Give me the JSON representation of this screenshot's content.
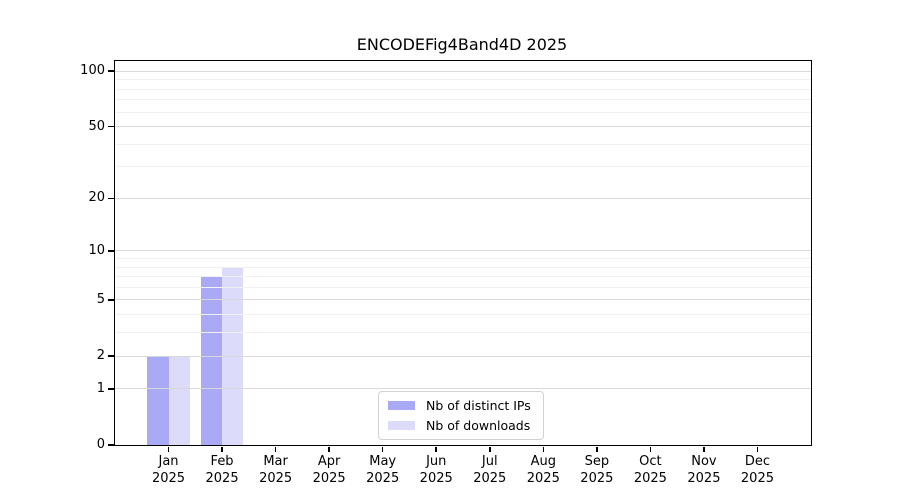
{
  "figure": {
    "title": "ENCODEFig4Band4D 2025"
  },
  "chart_data": {
    "type": "bar",
    "title": "ENCODEFig4Band4D 2025",
    "categories": [
      "Jan 2025",
      "Feb 2025",
      "Mar 2025",
      "Apr 2025",
      "May 2025",
      "Jun 2025",
      "Jul 2025",
      "Aug 2025",
      "Sep 2025",
      "Oct 2025",
      "Nov 2025",
      "Dec 2025"
    ],
    "series": [
      {
        "name": "Nb of distinct IPs",
        "color": "#a9a9f6",
        "values": [
          2,
          7,
          0,
          0,
          0,
          0,
          0,
          0,
          0,
          0,
          0,
          0
        ]
      },
      {
        "name": "Nb of downloads",
        "color": "#dcdcfa",
        "values": [
          2,
          8,
          0,
          0,
          0,
          0,
          0,
          0,
          0,
          0,
          0,
          0
        ]
      }
    ],
    "xlabel": "",
    "ylabel": "",
    "yscale": "log1p",
    "ylim": [
      0,
      113
    ],
    "y_ticks": [
      0,
      1,
      2,
      5,
      10,
      20,
      50,
      100
    ],
    "y_minor_ticks": [
      3,
      4,
      6,
      7,
      8,
      9,
      30,
      40,
      60,
      70,
      80,
      90
    ],
    "grid": "horizontal",
    "legend_position": "lower center"
  },
  "colors": {
    "grid_major": "#d9d9d9",
    "grid_minor": "#f1f1f1",
    "spine": "#000000",
    "background": "#ffffff"
  }
}
